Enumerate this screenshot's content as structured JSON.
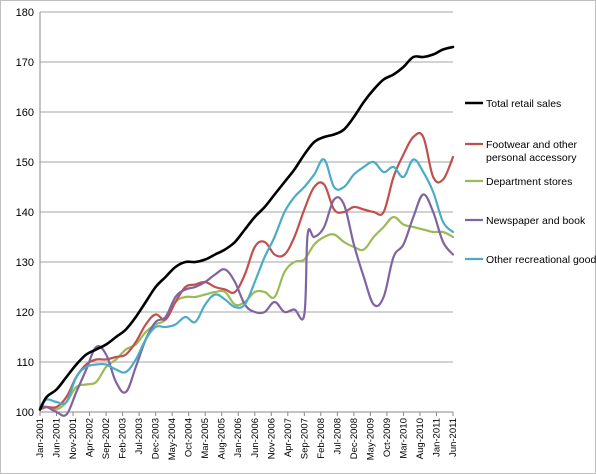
{
  "chart_data": {
    "type": "line",
    "title": "",
    "xlabel": "",
    "ylabel": "",
    "ylim": [
      100,
      180
    ],
    "y_ticks": [
      100,
      110,
      120,
      130,
      140,
      150,
      160,
      170,
      180
    ],
    "x_tick_labels": [
      "Jan-2001",
      "Jun-2001",
      "Nov-2001",
      "Apr-2002",
      "Sep-2002",
      "Feb-2003",
      "Jul-2003",
      "Dec-2003",
      "May-2004",
      "Oct-2004",
      "Mar-2005",
      "Aug-2005",
      "Jan-2006",
      "Jun-2006",
      "Nov-2006",
      "Apr-2007",
      "Sep-2007",
      "Feb-2008",
      "Jul-2008",
      "Dec-2008",
      "May-2009",
      "Oct-2009",
      "Mar-2010",
      "Aug-2010",
      "Jan-2011",
      "Jun-2011"
    ],
    "grid": "horizontal",
    "legend_position": "right",
    "series": [
      {
        "name": "Total retail sales",
        "color": "#000000",
        "points": [
          [
            "Jan-2001",
            100.5
          ],
          [
            "Mar-2001",
            103
          ],
          [
            "Jun-2001",
            104.5
          ],
          [
            "Sep-2001",
            107
          ],
          [
            "Dec-2001",
            109.5
          ],
          [
            "Mar-2002",
            111.5
          ],
          [
            "Jun-2002",
            112.5
          ],
          [
            "Sep-2002",
            113.5
          ],
          [
            "Dec-2002",
            115
          ],
          [
            "Mar-2003",
            116.5
          ],
          [
            "Jun-2003",
            119
          ],
          [
            "Sep-2003",
            122
          ],
          [
            "Dec-2003",
            125
          ],
          [
            "Mar-2004",
            127
          ],
          [
            "Jun-2004",
            129
          ],
          [
            "Sep-2004",
            130
          ],
          [
            "Dec-2004",
            130
          ],
          [
            "Mar-2005",
            130.5
          ],
          [
            "Jun-2005",
            131.5
          ],
          [
            "Sep-2005",
            132.5
          ],
          [
            "Dec-2005",
            134
          ],
          [
            "Mar-2006",
            136.5
          ],
          [
            "Jun-2006",
            139
          ],
          [
            "Sep-2006",
            141
          ],
          [
            "Dec-2006",
            143.5
          ],
          [
            "Mar-2007",
            146
          ],
          [
            "Jun-2007",
            148.5
          ],
          [
            "Sep-2007",
            151.5
          ],
          [
            "Dec-2007",
            154
          ],
          [
            "Mar-2008",
            155
          ],
          [
            "Jun-2008",
            155.5
          ],
          [
            "Sep-2008",
            156.5
          ],
          [
            "Dec-2008",
            159
          ],
          [
            "Mar-2009",
            162
          ],
          [
            "Jun-2009",
            164.5
          ],
          [
            "Sep-2009",
            166.5
          ],
          [
            "Dec-2009",
            167.5
          ],
          [
            "Mar-2010",
            169
          ],
          [
            "Jun-2010",
            171
          ],
          [
            "Sep-2010",
            171
          ],
          [
            "Dec-2010",
            171.5
          ],
          [
            "Mar-2011",
            172.5
          ],
          [
            "Jun-2011",
            173
          ]
        ]
      },
      {
        "name": "Footwear and other personal accessory",
        "color": "#c0504d",
        "points": [
          [
            "Jan-2001",
            100.5
          ],
          [
            "Mar-2001",
            101
          ],
          [
            "Jun-2001",
            101
          ],
          [
            "Sep-2001",
            103
          ],
          [
            "Dec-2001",
            107
          ],
          [
            "Mar-2002",
            109.5
          ],
          [
            "Jun-2002",
            110.5
          ],
          [
            "Sep-2002",
            110.5
          ],
          [
            "Dec-2002",
            111
          ],
          [
            "Mar-2003",
            111.5
          ],
          [
            "Jun-2003",
            114
          ],
          [
            "Sep-2003",
            117.5
          ],
          [
            "Dec-2003",
            119.5
          ],
          [
            "Mar-2004",
            118.5
          ],
          [
            "Jun-2004",
            122
          ],
          [
            "Sep-2004",
            125
          ],
          [
            "Dec-2004",
            125.5
          ],
          [
            "Mar-2005",
            126
          ],
          [
            "Jun-2005",
            125
          ],
          [
            "Sep-2005",
            124.5
          ],
          [
            "Dec-2005",
            124
          ],
          [
            "Mar-2006",
            127.5
          ],
          [
            "Jun-2006",
            133
          ],
          [
            "Sep-2006",
            134
          ],
          [
            "Dec-2006",
            131.5
          ],
          [
            "Mar-2007",
            131.5
          ],
          [
            "Jun-2007",
            135
          ],
          [
            "Sep-2007",
            140.5
          ],
          [
            "Dec-2007",
            145
          ],
          [
            "Mar-2008",
            145.5
          ],
          [
            "Jun-2008",
            140.5
          ],
          [
            "Sep-2008",
            140
          ],
          [
            "Dec-2008",
            141
          ],
          [
            "Mar-2009",
            140.5
          ],
          [
            "Jun-2009",
            140
          ],
          [
            "Sep-2009",
            140
          ],
          [
            "Dec-2009",
            147
          ],
          [
            "Mar-2010",
            151.5
          ],
          [
            "Jun-2010",
            155
          ],
          [
            "Sep-2010",
            155
          ],
          [
            "Dec-2010",
            147
          ],
          [
            "Mar-2011",
            146.5
          ],
          [
            "Jun-2011",
            151
          ]
        ]
      },
      {
        "name": "Department stores",
        "color": "#9bbb59",
        "points": [
          [
            "Jan-2001",
            101
          ],
          [
            "Mar-2001",
            101
          ],
          [
            "Jun-2001",
            100.5
          ],
          [
            "Sep-2001",
            102
          ],
          [
            "Dec-2001",
            105
          ],
          [
            "Mar-2002",
            105.5
          ],
          [
            "Jun-2002",
            106
          ],
          [
            "Sep-2002",
            109
          ],
          [
            "Dec-2002",
            110.5
          ],
          [
            "Mar-2003",
            112.5
          ],
          [
            "Jun-2003",
            113.5
          ],
          [
            "Sep-2003",
            116
          ],
          [
            "Dec-2003",
            117.5
          ],
          [
            "Mar-2004",
            118.5
          ],
          [
            "Jun-2004",
            122
          ],
          [
            "Sep-2004",
            123
          ],
          [
            "Dec-2004",
            123
          ],
          [
            "Mar-2005",
            123.5
          ],
          [
            "Jun-2005",
            124
          ],
          [
            "Sep-2005",
            124
          ],
          [
            "Dec-2005",
            121.5
          ],
          [
            "Mar-2006",
            122
          ],
          [
            "Jun-2006",
            124
          ],
          [
            "Sep-2006",
            124
          ],
          [
            "Dec-2006",
            123
          ],
          [
            "Mar-2007",
            128
          ],
          [
            "Jun-2007",
            130
          ],
          [
            "Sep-2007",
            130.5
          ],
          [
            "Dec-2007",
            133.5
          ],
          [
            "Mar-2008",
            135
          ],
          [
            "Jun-2008",
            135.5
          ],
          [
            "Sep-2008",
            134
          ],
          [
            "Dec-2008",
            133
          ],
          [
            "Mar-2009",
            132.5
          ],
          [
            "Jun-2009",
            135
          ],
          [
            "Sep-2009",
            137
          ],
          [
            "Dec-2009",
            139
          ],
          [
            "Mar-2010",
            137.5
          ],
          [
            "Jun-2010",
            137
          ],
          [
            "Sep-2010",
            136.5
          ],
          [
            "Dec-2010",
            136
          ],
          [
            "Mar-2011",
            136
          ],
          [
            "Jun-2011",
            135
          ]
        ]
      },
      {
        "name": "Newspaper and book",
        "color": "#8064a2",
        "points": [
          [
            "Jan-2001",
            101
          ],
          [
            "Mar-2001",
            101
          ],
          [
            "Jun-2001",
            100
          ],
          [
            "Sep-2001",
            99.5
          ],
          [
            "Dec-2001",
            104
          ],
          [
            "Mar-2002",
            108.5
          ],
          [
            "Jun-2002",
            113
          ],
          [
            "Sep-2002",
            111.5
          ],
          [
            "Dec-2002",
            106
          ],
          [
            "Mar-2003",
            104
          ],
          [
            "Jun-2003",
            109
          ],
          [
            "Sep-2003",
            114.5
          ],
          [
            "Dec-2003",
            118
          ],
          [
            "Mar-2004",
            119
          ],
          [
            "Jun-2004",
            123
          ],
          [
            "Sep-2004",
            124.5
          ],
          [
            "Dec-2004",
            125
          ],
          [
            "Mar-2005",
            126
          ],
          [
            "Jun-2005",
            127.5
          ],
          [
            "Sep-2005",
            128.5
          ],
          [
            "Dec-2005",
            126
          ],
          [
            "Mar-2006",
            121.5
          ],
          [
            "Jun-2006",
            120
          ],
          [
            "Sep-2006",
            120
          ],
          [
            "Dec-2006",
            122
          ],
          [
            "Mar-2007",
            120
          ],
          [
            "Jun-2007",
            120.5
          ],
          [
            "Sep-2007",
            119.5
          ],
          [
            "Oct-2007",
            135.5
          ],
          [
            "Dec-2007",
            135
          ],
          [
            "Mar-2008",
            137
          ],
          [
            "Jun-2008",
            142.5
          ],
          [
            "Sep-2008",
            141.5
          ],
          [
            "Dec-2008",
            133.5
          ],
          [
            "Mar-2009",
            127
          ],
          [
            "Jun-2009",
            121.5
          ],
          [
            "Sep-2009",
            123
          ],
          [
            "Dec-2009",
            131
          ],
          [
            "Mar-2010",
            133.5
          ],
          [
            "Jun-2010",
            139
          ],
          [
            "Sep-2010",
            143.5
          ],
          [
            "Dec-2010",
            140
          ],
          [
            "Mar-2011",
            134
          ],
          [
            "Jun-2011",
            131.5
          ]
        ]
      },
      {
        "name": "Other recreational goods",
        "color": "#4bacc6",
        "points": [
          [
            "Jan-2001",
            101
          ],
          [
            "Mar-2001",
            102.5
          ],
          [
            "Jun-2001",
            102
          ],
          [
            "Sep-2001",
            102
          ],
          [
            "Dec-2001",
            107
          ],
          [
            "Mar-2002",
            109
          ],
          [
            "Jun-2002",
            109.5
          ],
          [
            "Sep-2002",
            109.5
          ],
          [
            "Dec-2002",
            108.5
          ],
          [
            "Mar-2003",
            108
          ],
          [
            "Jun-2003",
            110.5
          ],
          [
            "Sep-2003",
            114.5
          ],
          [
            "Dec-2003",
            117
          ],
          [
            "Mar-2004",
            117
          ],
          [
            "Jun-2004",
            117.5
          ],
          [
            "Sep-2004",
            119
          ],
          [
            "Dec-2004",
            118
          ],
          [
            "Mar-2005",
            121.5
          ],
          [
            "Jun-2005",
            123.5
          ],
          [
            "Sep-2005",
            122.5
          ],
          [
            "Dec-2005",
            121
          ],
          [
            "Mar-2006",
            121.5
          ],
          [
            "Jun-2006",
            126
          ],
          [
            "Sep-2006",
            131
          ],
          [
            "Dec-2006",
            135
          ],
          [
            "Mar-2007",
            140
          ],
          [
            "Jun-2007",
            143
          ],
          [
            "Sep-2007",
            145
          ],
          [
            "Dec-2007",
            147.5
          ],
          [
            "Mar-2008",
            150.5
          ],
          [
            "Jun-2008",
            145
          ],
          [
            "Sep-2008",
            145
          ],
          [
            "Dec-2008",
            147.5
          ],
          [
            "Mar-2009",
            149
          ],
          [
            "Jun-2009",
            150
          ],
          [
            "Sep-2009",
            148
          ],
          [
            "Dec-2009",
            149
          ],
          [
            "Mar-2010",
            147
          ],
          [
            "Jun-2010",
            150.5
          ],
          [
            "Sep-2010",
            148
          ],
          [
            "Dec-2010",
            144
          ],
          [
            "Mar-2011",
            138
          ],
          [
            "Jun-2011",
            136
          ]
        ]
      }
    ]
  }
}
